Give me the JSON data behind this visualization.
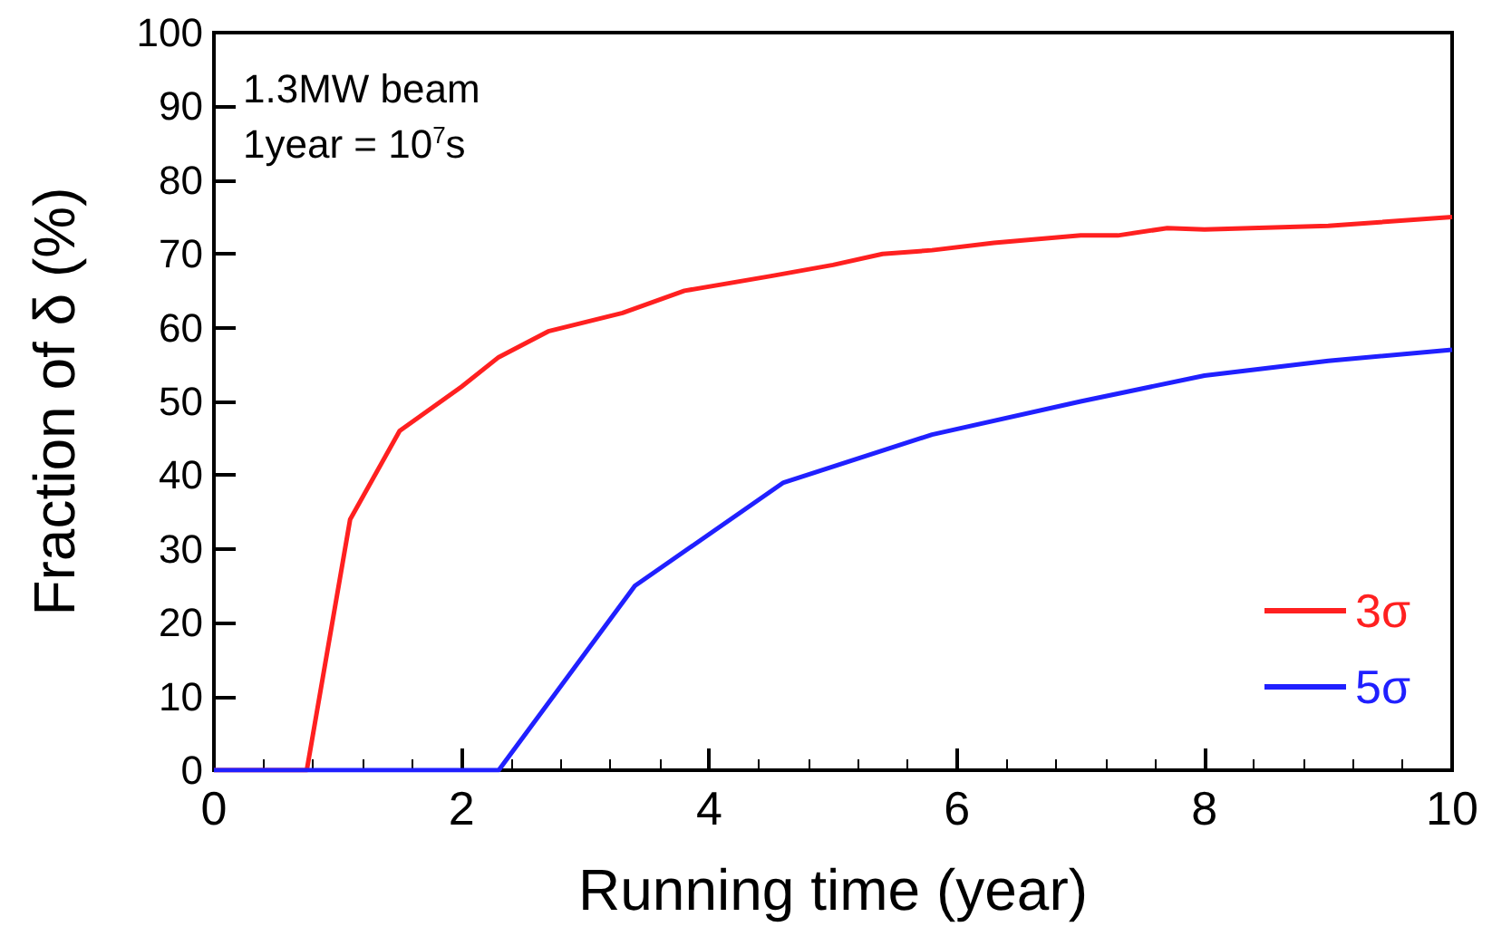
{
  "chart_data": {
    "type": "line",
    "xlabel": "Running time (year)",
    "ylabel": "Fraction of δ (%)",
    "annotations": [
      "1.3MW beam",
      "1year = 10$^{7}$s"
    ],
    "xlim": [
      0,
      10
    ],
    "xticks": [
      0,
      2,
      4,
      6,
      8,
      10
    ],
    "ylim": [
      0,
      100
    ],
    "yticks": [
      0,
      10,
      20,
      30,
      40,
      50,
      60,
      70,
      80,
      90,
      100
    ],
    "grid": false,
    "legend": "bottom right",
    "marker": "none",
    "line_style": "solid",
    "series": [
      {
        "name": "3σ",
        "color": "#ff2020",
        "x": [
          0,
          0.75,
          1.1,
          1.5,
          2,
          2.3,
          2.7,
          3.3,
          3.8,
          4.5,
          5,
          5.4,
          5.8,
          6.3,
          7,
          7.3,
          7.7,
          8,
          9,
          10
        ],
        "values": [
          0,
          0,
          34,
          46,
          52,
          56,
          59.5,
          62,
          65,
          67,
          68.5,
          70,
          70.5,
          71.5,
          72.5,
          72.5,
          73.5,
          73.3,
          73.8,
          75
        ]
      },
      {
        "name": "5σ",
        "color": "#2020ff",
        "x": [
          0,
          2.3,
          3.4,
          4.6,
          5.8,
          7,
          8,
          9,
          10
        ],
        "values": [
          0,
          0,
          25,
          39,
          45.5,
          50,
          53.5,
          55.5,
          57
        ]
      }
    ]
  }
}
